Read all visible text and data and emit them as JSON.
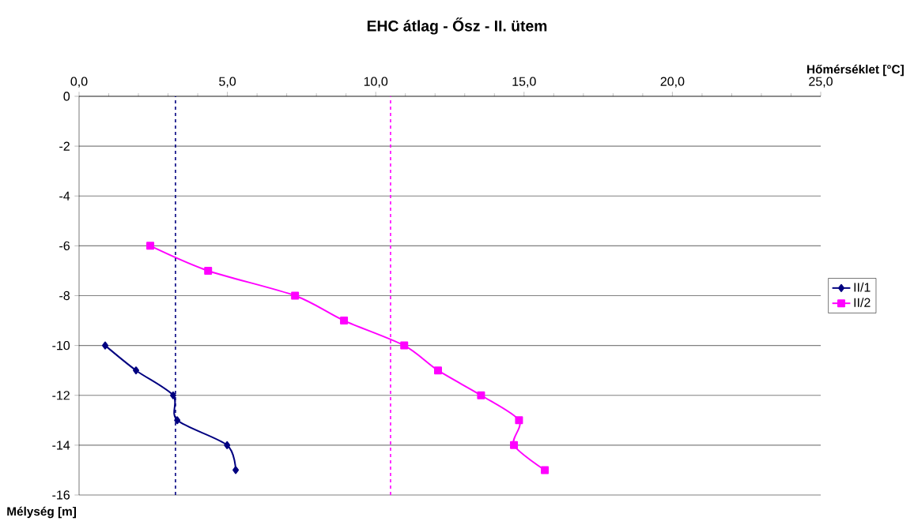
{
  "chart_data": {
    "type": "line",
    "title": "EHC átlag - Ősz - II. ütem",
    "xlabel": "Hőmérséklet [°C]",
    "ylabel": "Mélység [m]",
    "xlim": [
      0,
      25
    ],
    "ylim": [
      -16,
      0
    ],
    "xticks": [
      {
        "value": 0,
        "label": "0,0"
      },
      {
        "value": 5,
        "label": "5,0"
      },
      {
        "value": 10,
        "label": "10,0"
      },
      {
        "value": 15,
        "label": "15,0"
      },
      {
        "value": 20,
        "label": "20,0"
      },
      {
        "value": 25,
        "label": "25,0"
      }
    ],
    "yticks": [
      0,
      -2,
      -4,
      -6,
      -8,
      -10,
      -12,
      -14,
      -16
    ],
    "grid": "y",
    "legend": "right",
    "line_style": "solid",
    "series": [
      {
        "name": "II/1",
        "color": "#000080",
        "marker": "diamond",
        "x": [
          0.88,
          1.92,
          3.17,
          3.31,
          4.99,
          5.28
        ],
        "values": [
          -10,
          -11,
          -12,
          -13,
          -14,
          -15
        ]
      },
      {
        "name": "II/2",
        "color": "#ff00ff",
        "marker": "square",
        "x": [
          2.4,
          4.35,
          7.28,
          8.93,
          10.96,
          12.1,
          13.55,
          14.83,
          14.66,
          15.7
        ],
        "values": [
          -6,
          -7,
          -8,
          -9,
          -10,
          -11,
          -12,
          -13,
          -14,
          -15
        ]
      }
    ],
    "ref_lines": [
      {
        "axis": "x",
        "value": 3.25,
        "color": "#000080",
        "line_style": "dashed"
      },
      {
        "axis": "x",
        "value": 10.5,
        "color": "#ff00ff",
        "line_style": "dashed"
      }
    ]
  }
}
